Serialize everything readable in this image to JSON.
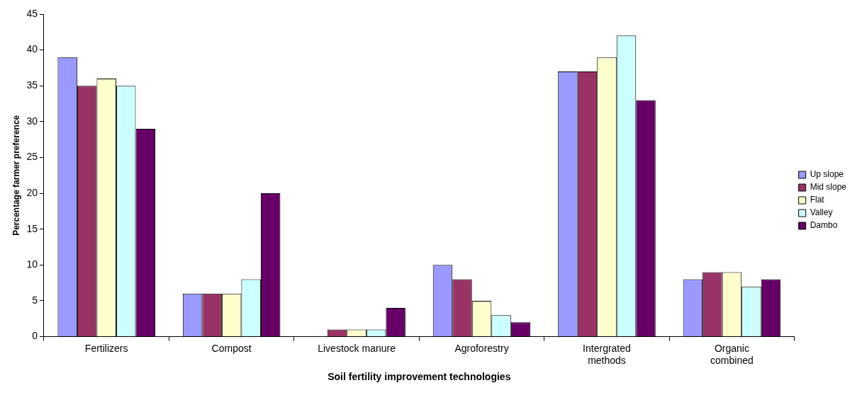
{
  "chart_data": {
    "type": "bar",
    "xlabel": "Soil fertility improvement technologies",
    "ylabel": "Percentage farmer preference",
    "categories": [
      "Fertilizers",
      "Compost",
      "Livestock manure",
      "Agroforestry",
      "Intergrated\nmethods",
      "Organic\ncombined"
    ],
    "series": [
      {
        "name": "Up slope",
        "color": "#9999ff",
        "values": [
          39,
          6,
          0,
          10,
          37,
          8
        ]
      },
      {
        "name": "Mid slope",
        "color": "#993366",
        "values": [
          35,
          6,
          1,
          8,
          37,
          9
        ]
      },
      {
        "name": "Flat",
        "color": "#ffffcc",
        "values": [
          36,
          6,
          1,
          5,
          39,
          9
        ]
      },
      {
        "name": "Valley",
        "color": "#ccffff",
        "values": [
          35,
          8,
          1,
          3,
          42,
          7
        ]
      },
      {
        "name": "Dambo",
        "color": "#660066",
        "values": [
          29,
          20,
          4,
          2,
          33,
          8
        ]
      }
    ],
    "ylim": [
      0,
      45
    ],
    "yticks": [
      0,
      5,
      10,
      15,
      20,
      25,
      30,
      35,
      40,
      45
    ],
    "grid": false,
    "legend": "right"
  }
}
